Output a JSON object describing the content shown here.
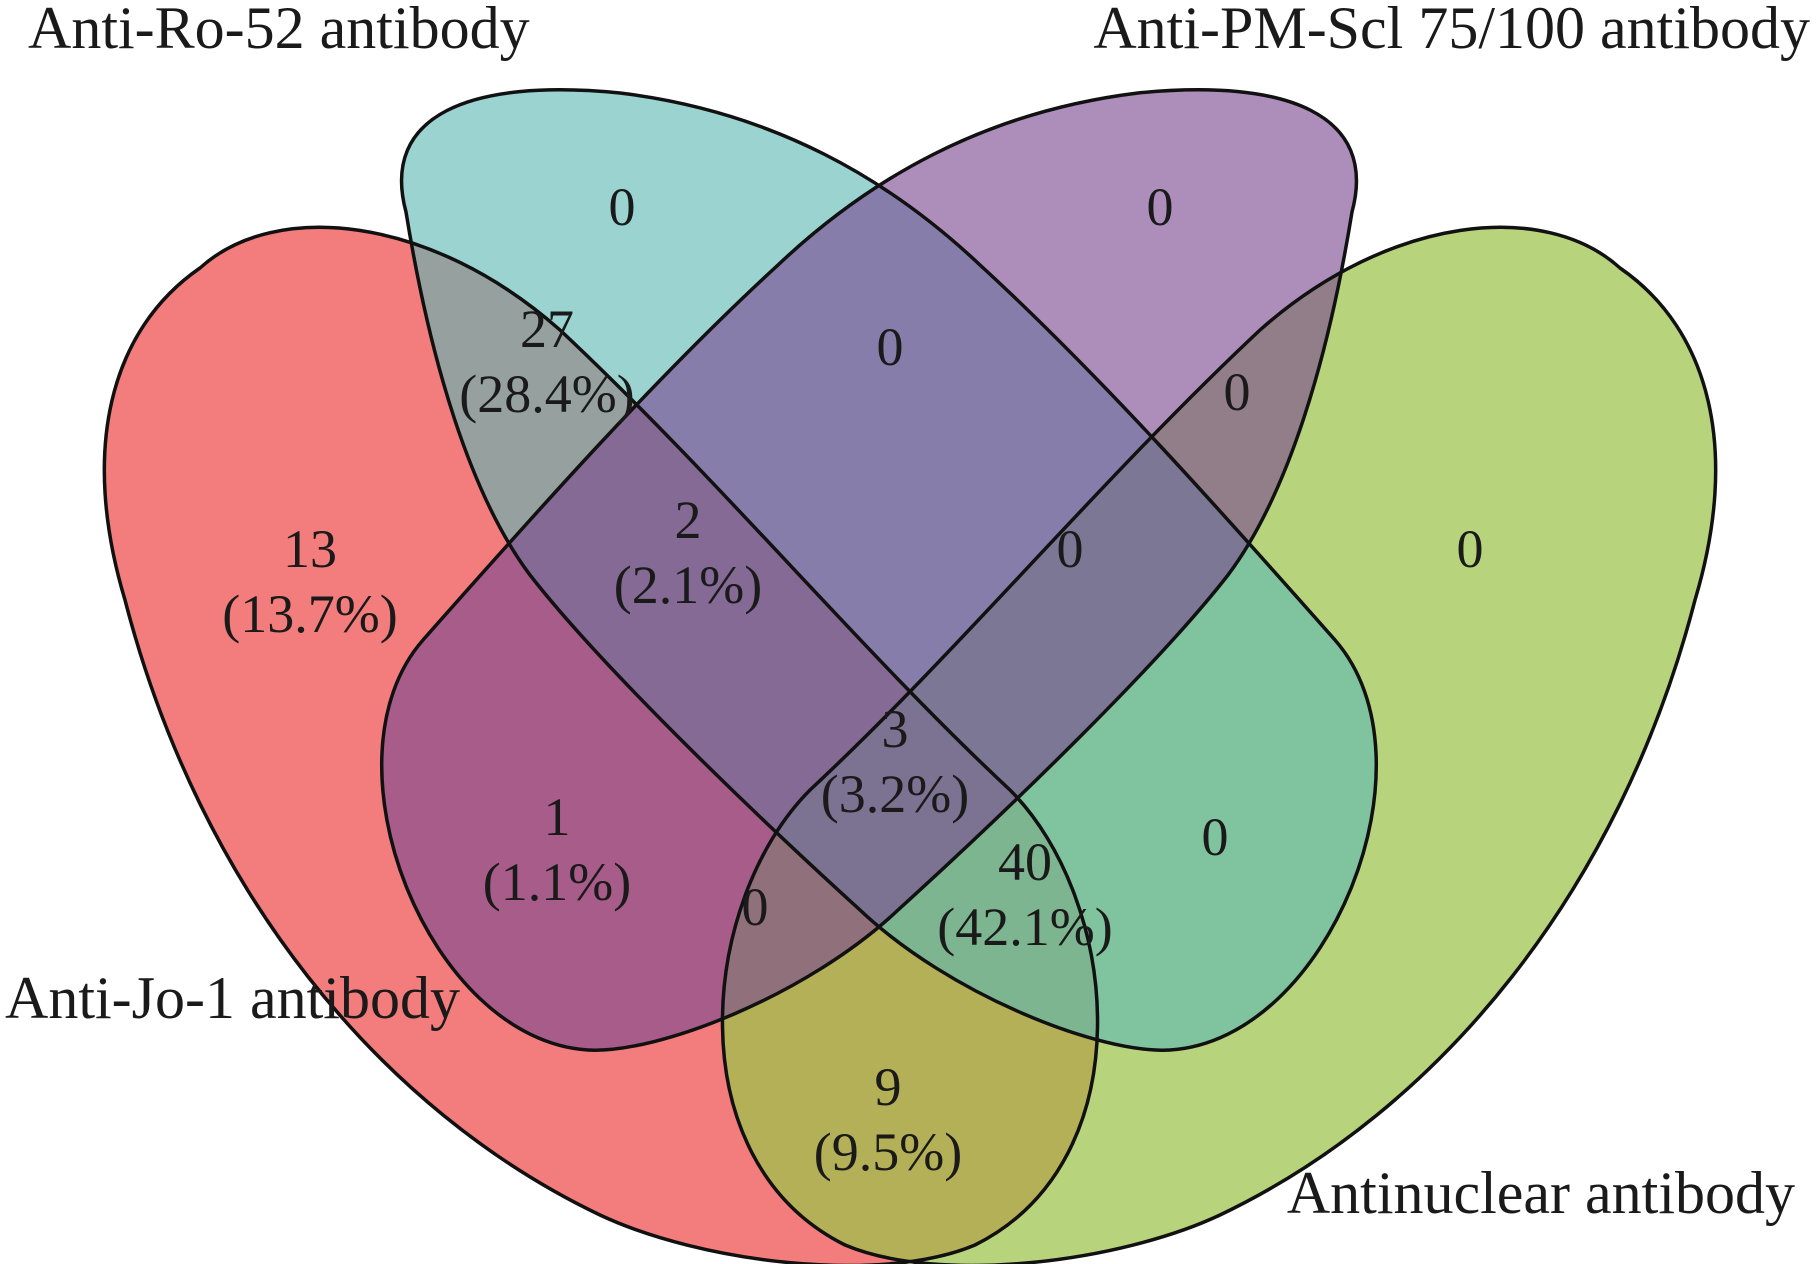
{
  "sets": [
    {
      "id": "jo1",
      "name": "Anti-Jo-1 antibody",
      "color": "#ee5957"
    },
    {
      "id": "ro52",
      "name": "Anti-Ro-52 antibody",
      "color": "#5eb8b5"
    },
    {
      "id": "pm",
      "name": "Anti-PM-Scl 75/100 antibody",
      "color": "#7b4891"
    },
    {
      "id": "ana",
      "name": "Antinuclear antibody",
      "color": "#9bc449"
    }
  ],
  "regions": [
    {
      "id": "ro52_only",
      "sets": [
        "ro52"
      ],
      "count": "0",
      "percent": ""
    },
    {
      "id": "pm_only",
      "sets": [
        "pm"
      ],
      "count": "0",
      "percent": ""
    },
    {
      "id": "jo1_ro52",
      "sets": [
        "jo1",
        "ro52"
      ],
      "count": "27",
      "percent": "(28.4%)"
    },
    {
      "id": "ro52_pm",
      "sets": [
        "ro52",
        "pm"
      ],
      "count": "0",
      "percent": ""
    },
    {
      "id": "pm_ana",
      "sets": [
        "pm",
        "ana"
      ],
      "count": "0",
      "percent": ""
    },
    {
      "id": "jo1_only",
      "sets": [
        "jo1"
      ],
      "count": "13",
      "percent": "(13.7%)"
    },
    {
      "id": "jo1_ro52_pm",
      "sets": [
        "jo1",
        "ro52",
        "pm"
      ],
      "count": "2",
      "percent": "(2.1%)"
    },
    {
      "id": "ro52_pm_ana",
      "sets": [
        "ro52",
        "pm",
        "ana"
      ],
      "count": "0",
      "percent": ""
    },
    {
      "id": "ana_only",
      "sets": [
        "ana"
      ],
      "count": "0",
      "percent": ""
    },
    {
      "id": "all_four",
      "sets": [
        "jo1",
        "ro52",
        "pm",
        "ana"
      ],
      "count": "3",
      "percent": "(3.2%)"
    },
    {
      "id": "jo1_pm",
      "sets": [
        "jo1",
        "pm"
      ],
      "count": "1",
      "percent": "(1.1%)"
    },
    {
      "id": "jo1_ro52_ana",
      "sets": [
        "jo1",
        "ro52",
        "ana"
      ],
      "count": "40",
      "percent": "(42.1%)"
    },
    {
      "id": "ro52_ana",
      "sets": [
        "ro52",
        "ana"
      ],
      "count": "0",
      "percent": ""
    },
    {
      "id": "jo1_pm_ana",
      "sets": [
        "jo1",
        "pm",
        "ana"
      ],
      "count": "0",
      "percent": ""
    },
    {
      "id": "jo1_ana",
      "sets": [
        "jo1",
        "ana"
      ],
      "count": "9",
      "percent": "(9.5%)"
    }
  ]
}
